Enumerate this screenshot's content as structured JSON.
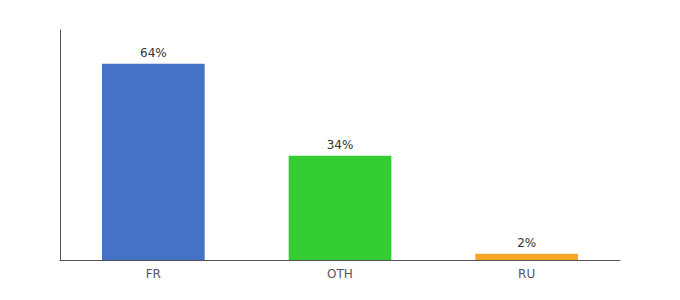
{
  "chart_data": {
    "type": "bar",
    "categories": [
      "FR",
      "OTH",
      "RU"
    ],
    "values": [
      64,
      34,
      2
    ],
    "value_labels": [
      "64%",
      "34%",
      "2%"
    ],
    "colors": [
      "#4472c4",
      "#33cc33",
      "#f5a623"
    ],
    "ylim": [
      0,
      75
    ],
    "data_labels": true,
    "tick_labels": "x",
    "grid": false
  }
}
